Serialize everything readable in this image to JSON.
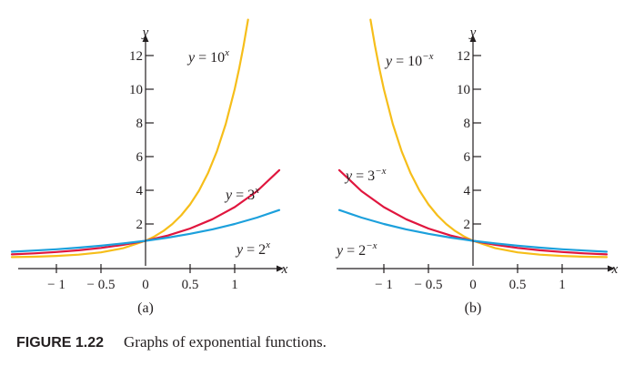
{
  "colors": {
    "axis": "#231f20",
    "base10": "#f6be1a",
    "base3": "#e0163e",
    "base2": "#1ca0dc"
  },
  "caption": {
    "number": "FIGURE 1.22",
    "text": "Graphs of exponential functions."
  },
  "chart_data": [
    {
      "panel": "a",
      "type": "line",
      "subtitle": "(a)",
      "xlabel": "x",
      "ylabel": "y",
      "xlim": [
        -1.5,
        1.6
      ],
      "ylim": [
        0,
        14
      ],
      "x_ticks": [
        {
          "value": -1,
          "label": "− 1"
        },
        {
          "value": -0.5,
          "label": "− 0.5"
        },
        {
          "value": 0,
          "label": "0"
        },
        {
          "value": 0.5,
          "label": "0.5"
        },
        {
          "value": 1,
          "label": "1"
        }
      ],
      "y_ticks": [
        {
          "value": 2,
          "label": "2"
        },
        {
          "value": 4,
          "label": "4"
        },
        {
          "value": 6,
          "label": "6"
        },
        {
          "value": 8,
          "label": "8"
        },
        {
          "value": 10,
          "label": "10"
        },
        {
          "value": 12,
          "label": "12"
        }
      ],
      "series": [
        {
          "name": "y = 10^x",
          "color_key": "base10",
          "label_base": "y = 10",
          "label_exp": "x",
          "x": [
            -1.5,
            -1.25,
            -1,
            -0.75,
            -0.5,
            -0.25,
            0,
            0.1,
            0.2,
            0.3,
            0.4,
            0.5,
            0.6,
            0.7,
            0.8,
            0.9,
            1,
            1.05,
            1.1,
            1.15
          ],
          "y": [
            0.032,
            0.056,
            0.1,
            0.178,
            0.316,
            0.562,
            1,
            1.259,
            1.585,
            1.995,
            2.512,
            3.162,
            3.981,
            5.012,
            6.31,
            7.943,
            10,
            11.22,
            12.59,
            14.13
          ]
        },
        {
          "name": "y = 3^x",
          "color_key": "base3",
          "label_base": "y = 3",
          "label_exp": "x",
          "x": [
            -1.5,
            -1.25,
            -1,
            -0.75,
            -0.5,
            -0.25,
            0,
            0.25,
            0.5,
            0.75,
            1,
            1.25,
            1.5
          ],
          "y": [
            0.192,
            0.253,
            0.333,
            0.439,
            0.577,
            0.76,
            1,
            1.316,
            1.732,
            2.28,
            3,
            3.948,
            5.196
          ]
        },
        {
          "name": "y = 2^x",
          "color_key": "base2",
          "label_base": "y = 2",
          "label_exp": "x",
          "x": [
            -1.5,
            -1.25,
            -1,
            -0.75,
            -0.5,
            -0.25,
            0,
            0.25,
            0.5,
            0.75,
            1,
            1.25,
            1.5
          ],
          "y": [
            0.354,
            0.42,
            0.5,
            0.595,
            0.707,
            0.841,
            1,
            1.189,
            1.414,
            1.682,
            2,
            2.378,
            2.828
          ]
        }
      ]
    },
    {
      "panel": "b",
      "type": "line",
      "subtitle": "(b)",
      "xlabel": "x",
      "ylabel": "y",
      "xlim": [
        -1.6,
        1.5
      ],
      "ylim": [
        0,
        14
      ],
      "x_ticks": [
        {
          "value": -1,
          "label": "− 1"
        },
        {
          "value": -0.5,
          "label": "− 0.5"
        },
        {
          "value": 0,
          "label": "0"
        },
        {
          "value": 0.5,
          "label": "0.5"
        },
        {
          "value": 1,
          "label": "1"
        }
      ],
      "y_ticks": [
        {
          "value": 2,
          "label": "2"
        },
        {
          "value": 4,
          "label": "4"
        },
        {
          "value": 6,
          "label": "6"
        },
        {
          "value": 8,
          "label": "8"
        },
        {
          "value": 10,
          "label": "10"
        },
        {
          "value": 12,
          "label": "12"
        }
      ],
      "series": [
        {
          "name": "y = 10^−x",
          "color_key": "base10",
          "label_base": "y = 10",
          "label_exp": "−x",
          "x": [
            -1.15,
            -1.1,
            -1.05,
            -1,
            -0.9,
            -0.8,
            -0.7,
            -0.6,
            -0.5,
            -0.4,
            -0.3,
            -0.2,
            -0.1,
            0,
            0.25,
            0.5,
            0.75,
            1,
            1.25,
            1.5
          ],
          "y": [
            14.13,
            12.59,
            11.22,
            10,
            7.943,
            6.31,
            5.012,
            3.981,
            3.162,
            2.512,
            1.995,
            1.585,
            1.259,
            1,
            0.562,
            0.316,
            0.178,
            0.1,
            0.056,
            0.032
          ]
        },
        {
          "name": "y = 3^−x",
          "color_key": "base3",
          "label_base": "y = 3",
          "label_exp": "−x",
          "x": [
            -1.5,
            -1.25,
            -1,
            -0.75,
            -0.5,
            -0.25,
            0,
            0.25,
            0.5,
            0.75,
            1,
            1.25,
            1.5
          ],
          "y": [
            5.196,
            3.948,
            3,
            2.28,
            1.732,
            1.316,
            1,
            0.76,
            0.577,
            0.439,
            0.333,
            0.253,
            0.192
          ]
        },
        {
          "name": "y = 2^−x",
          "color_key": "base2",
          "label_base": "y = 2",
          "label_exp": "−x",
          "x": [
            -1.5,
            -1.25,
            -1,
            -0.75,
            -0.5,
            -0.25,
            0,
            0.25,
            0.5,
            0.75,
            1,
            1.25,
            1.5
          ],
          "y": [
            2.828,
            2.378,
            2,
            1.682,
            1.414,
            1.189,
            1,
            0.841,
            0.707,
            0.595,
            0.5,
            0.42,
            0.354
          ]
        }
      ]
    }
  ]
}
